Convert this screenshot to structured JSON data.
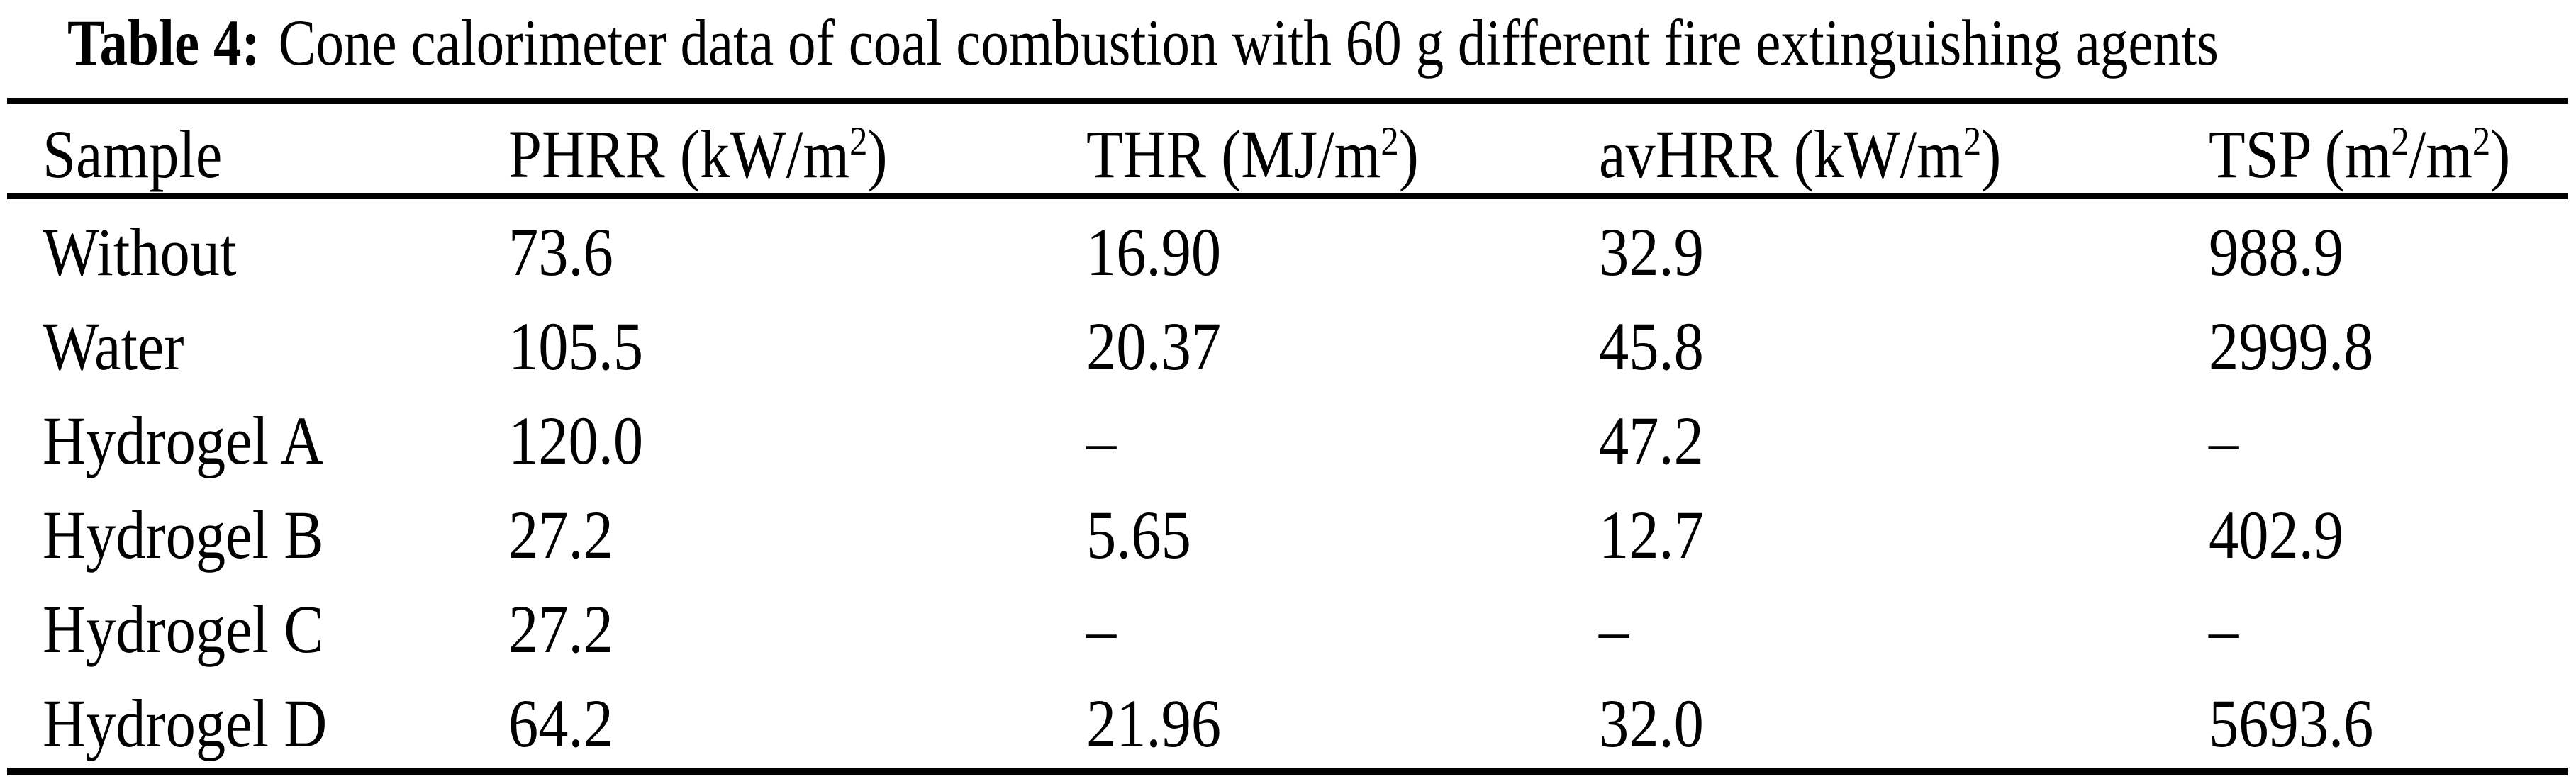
{
  "document": {
    "table_label": "Table 4:",
    "caption": "Cone calorimeter data of coal combustion with 60 g different fire extinguishing agents"
  },
  "table": {
    "columns": [
      "Sample",
      "PHRR (kW/m²)",
      "THR (MJ/m²)",
      "avHRR (kW/m²)",
      "TSP (m²/m²)"
    ],
    "missing_value_symbol": "–",
    "rows": [
      {
        "sample": "Without",
        "phrr": "73.6",
        "thr": "16.90",
        "avhrr": "32.9",
        "tsp": "988.9"
      },
      {
        "sample": "Water",
        "phrr": "105.5",
        "thr": "20.37",
        "avhrr": "45.8",
        "tsp": "2999.8"
      },
      {
        "sample": "Hydrogel A",
        "phrr": "120.0",
        "thr": "–",
        "avhrr": "47.2",
        "tsp": "–"
      },
      {
        "sample": "Hydrogel B",
        "phrr": "27.2",
        "thr": "5.65",
        "avhrr": "12.7",
        "tsp": "402.9"
      },
      {
        "sample": "Hydrogel C",
        "phrr": "27.2",
        "thr": "–",
        "avhrr": "–",
        "tsp": "–"
      },
      {
        "sample": "Hydrogel D",
        "phrr": "64.2",
        "thr": "21.96",
        "avhrr": "32.0",
        "tsp": "5693.6"
      }
    ]
  }
}
